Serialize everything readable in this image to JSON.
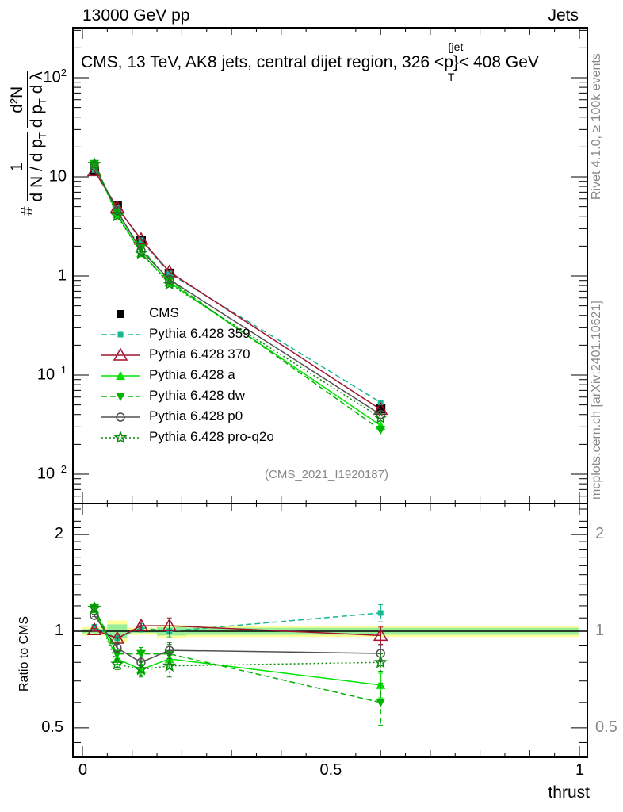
{
  "header": {
    "left": "13000 GeV pp",
    "right": "Jets"
  },
  "side": {
    "rivet": "Rivet 4.1.0, ≥ 100k events",
    "mcplots": "mcplots.cern.ch [arXiv:2401.10621]"
  },
  "analysis_id": "(CMS_2021_I1920187)",
  "chart_data": [
    {
      "type": "line",
      "title": "CMS, 13 TeV, AK8 jets, central dijet region, 326 <p_T^{jet}< 408 GeV",
      "title_parts": {
        "pre": "CMS, 13 TeV, AK8 jets, central dijet region, 326 <p",
        "sub": "T",
        "sup": "{jet",
        "post": "}< 408 GeV"
      },
      "ylabel": "1/(dN/dp_T) d²N/(dp_T dλ)",
      "ylabel_parts": {
        "one": "1",
        "den": "d N / d p",
        "num": "d²N",
        "den2": "d p",
        "dl": "d λ",
        "T": "T",
        "hash": "#"
      },
      "yscale": "log",
      "ylim": [
        0.005,
        320
      ],
      "xlim": [
        -0.02,
        1.015
      ],
      "ytick_labels": [
        {
          "base": "10",
          "exp": "−2"
        },
        {
          "base": "10",
          "exp": "−1"
        },
        {
          "base": "1",
          "exp": ""
        },
        {
          "base": "10",
          "exp": ""
        },
        {
          "base": "10",
          "exp": "2"
        }
      ],
      "ytick_values": [
        0.01,
        0.1,
        1,
        10,
        100
      ],
      "legend_position": "center-left",
      "x": [
        0.024,
        0.07,
        0.118,
        0.175,
        0.6
      ],
      "series": [
        {
          "name": "CMS",
          "color": "#000000",
          "line": "none",
          "marker": "square",
          "values": [
            11.4,
            5.15,
            2.25,
            1.06,
            0.046
          ]
        },
        {
          "name": "Pythia 6.428 359",
          "color": "#17b890",
          "line": "dashed",
          "marker": "small-square",
          "values": [
            11.7,
            4.9,
            2.3,
            1.06,
            0.053
          ]
        },
        {
          "name": "Pythia 6.428 370",
          "color": "#a0142e",
          "line": "solid",
          "marker": "open-triangle",
          "values": [
            11.5,
            4.9,
            2.34,
            1.1,
            0.045
          ]
        },
        {
          "name": "Pythia 6.428 a",
          "color": "#00e400",
          "line": "solid",
          "marker": "triangle-up",
          "values": [
            13.3,
            4.2,
            1.7,
            0.86,
            0.031
          ]
        },
        {
          "name": "Pythia 6.428 dw",
          "color": "#00b400",
          "line": "dashed",
          "marker": "triangle-down",
          "values": [
            13.5,
            4.4,
            1.9,
            0.9,
            0.028
          ]
        },
        {
          "name": "Pythia 6.428 p0",
          "color": "#505050",
          "line": "solid",
          "marker": "open-circle",
          "values": [
            12.8,
            4.55,
            1.8,
            0.92,
            0.04
          ]
        },
        {
          "name": "Pythia 6.428 pro-q2o",
          "color": "#0a8a0a",
          "line": "dotted",
          "marker": "star",
          "values": [
            13.4,
            4.05,
            1.7,
            0.83,
            0.037
          ]
        }
      ]
    },
    {
      "type": "line",
      "ylabel": "Ratio to CMS",
      "xlabel": "thrust",
      "yscale": "log",
      "ylim": [
        0.405,
        2.5
      ],
      "ytick_values": [
        0.5,
        1,
        2
      ],
      "ytick_labels": [
        "0.5",
        "1",
        "2"
      ],
      "xtick_values": [
        0,
        0.5,
        1
      ],
      "xtick_labels": [
        "0",
        "0.5",
        "1"
      ],
      "band": {
        "edges": [
          0,
          0.05,
          0.09,
          0.15,
          0.21,
          1.0
        ],
        "outer": [
          0.03,
          0.08,
          0.025,
          0.045,
          0.04
        ],
        "inner": [
          0.015,
          0.05,
          0.012,
          0.03,
          0.025
        ]
      },
      "x": [
        0.024,
        0.07,
        0.118,
        0.175,
        0.6
      ],
      "series": [
        {
          "name": "Pythia 6.428 359",
          "values": [
            1.03,
            0.95,
            1.025,
            1.0,
            1.14
          ],
          "errors": [
            0.02,
            0.03,
            0.03,
            0.04,
            0.07
          ]
        },
        {
          "name": "Pythia 6.428 370",
          "values": [
            1.01,
            0.95,
            1.04,
            1.04,
            0.97
          ],
          "errors": [
            0.01,
            0.03,
            0.03,
            0.06,
            0.06
          ]
        },
        {
          "name": "Pythia 6.428 a",
          "values": [
            1.17,
            0.82,
            0.76,
            0.82,
            0.68
          ],
          "errors": [
            0.02,
            0.03,
            0.03,
            0.05,
            0.06
          ]
        },
        {
          "name": "Pythia 6.428 dw",
          "values": [
            1.18,
            0.85,
            0.85,
            0.85,
            0.6
          ],
          "errors": [
            0.02,
            0.03,
            0.04,
            0.06,
            0.09
          ]
        },
        {
          "name": "Pythia 6.428 p0",
          "values": [
            1.12,
            0.886,
            0.8,
            0.872,
            0.853
          ],
          "errors": [
            0.01,
            0.03,
            0.03,
            0.05,
            0.05
          ]
        },
        {
          "name": "Pythia 6.428 pro-q2o",
          "values": [
            1.18,
            0.79,
            0.76,
            0.78,
            0.8
          ],
          "errors": [
            0.02,
            0.03,
            0.04,
            0.06,
            0.05
          ]
        }
      ]
    }
  ]
}
